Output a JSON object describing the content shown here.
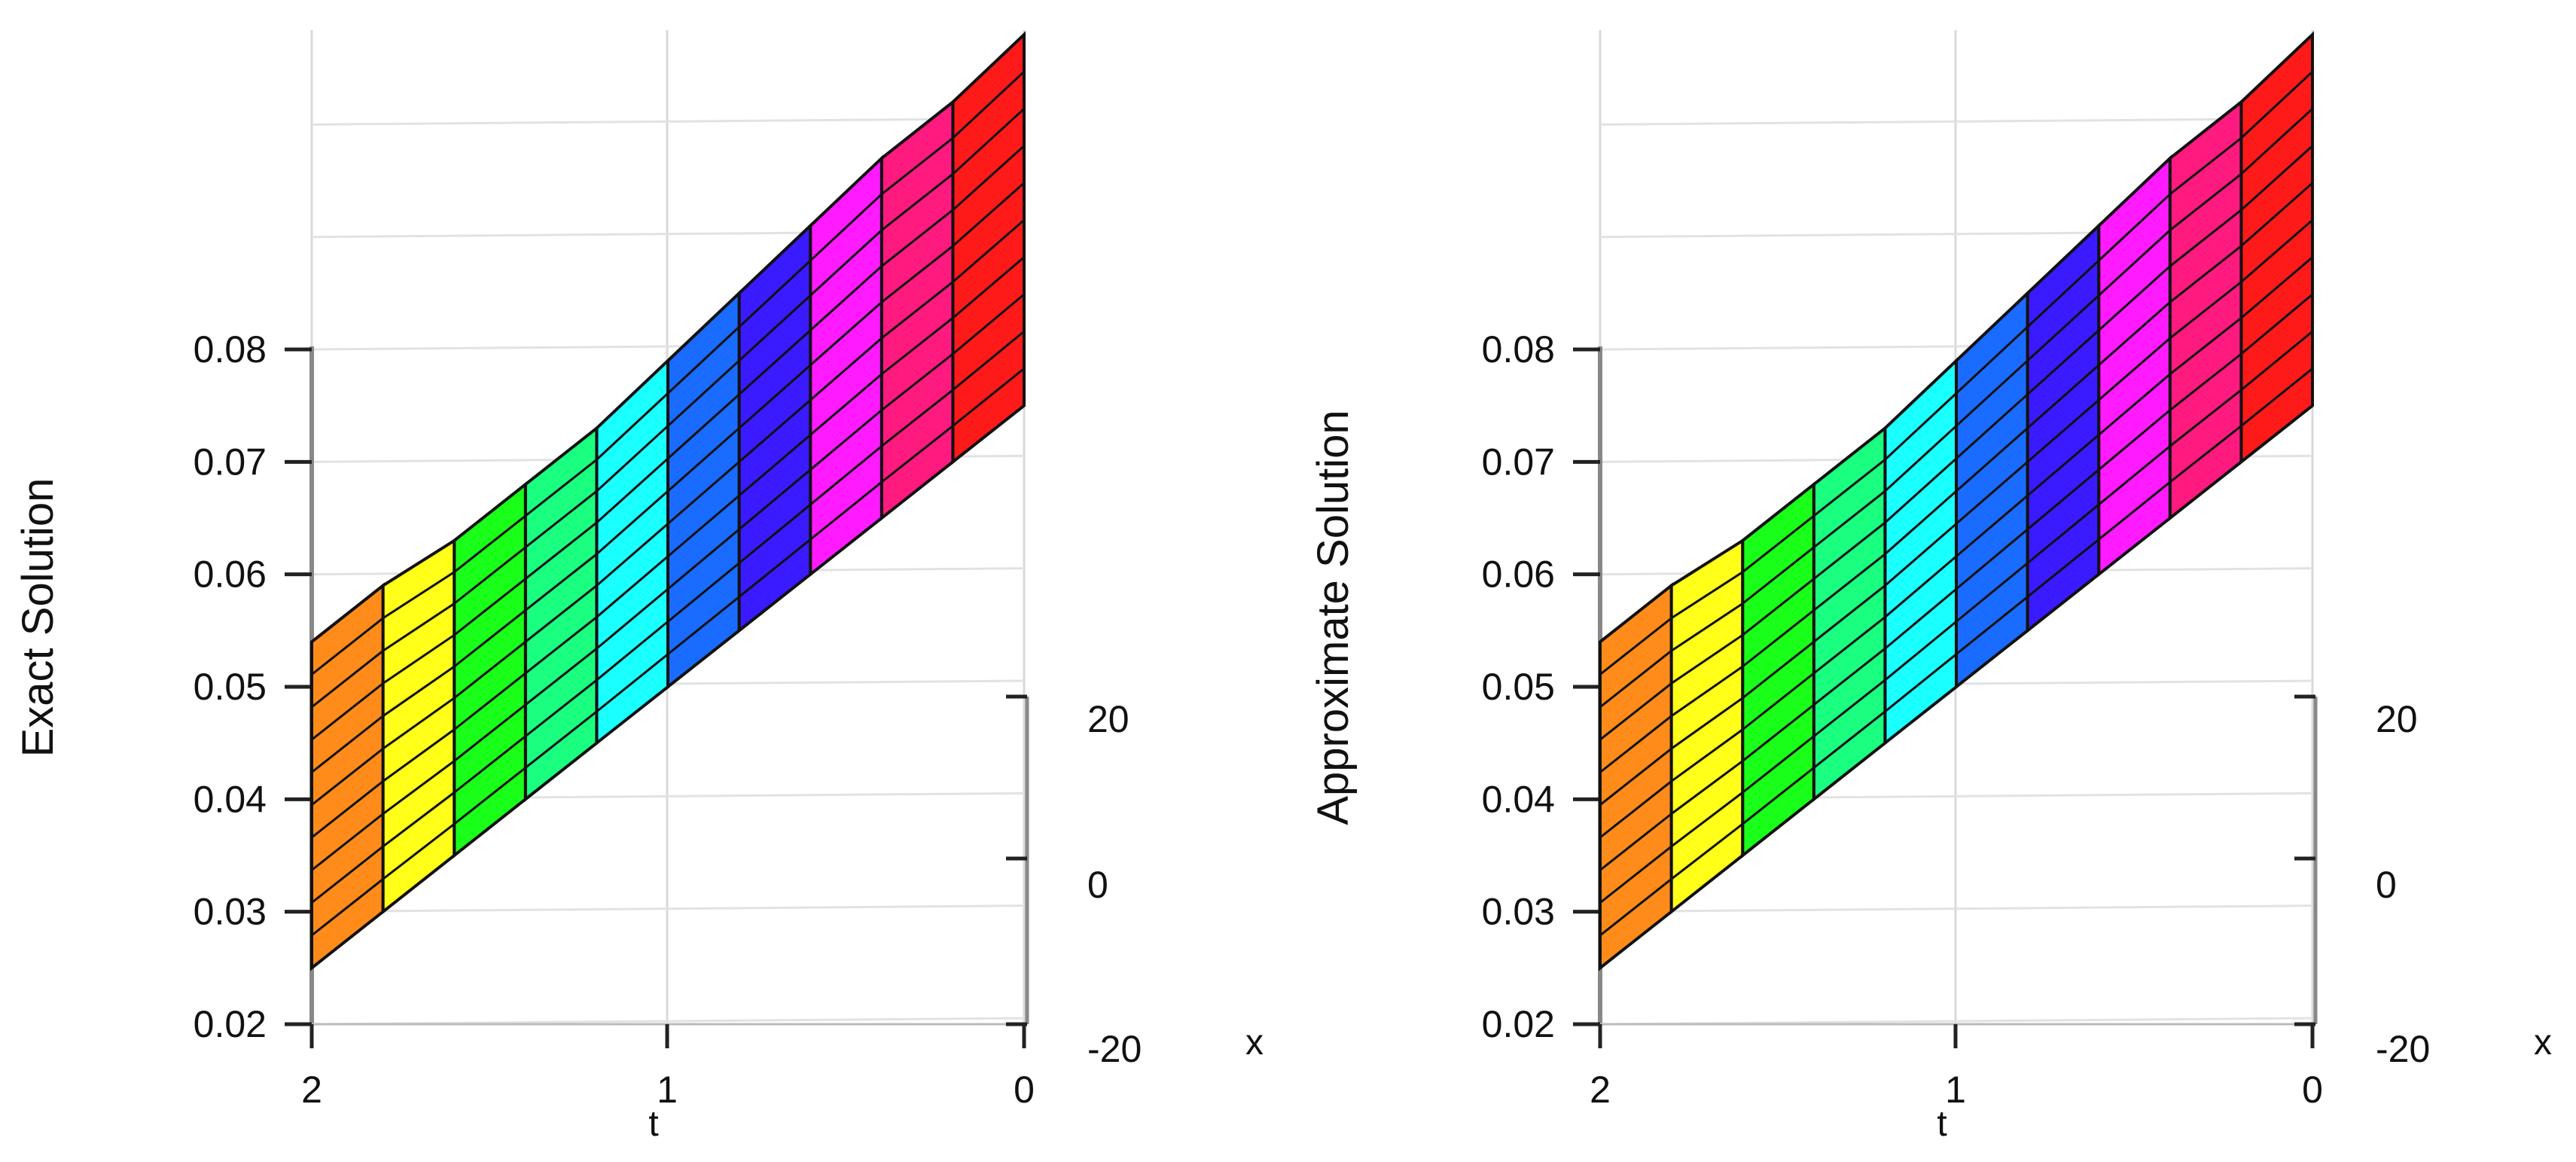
{
  "chart_data": [
    {
      "type": "surface",
      "title": "",
      "zlabel": "Exact Solution",
      "tlabel": "t",
      "xlabel": "x",
      "t_ticks": [
        "2",
        "1",
        "0"
      ],
      "x_ticks": [
        "20",
        "0",
        "-20"
      ],
      "z_ticks": [
        "0.08",
        "0.07",
        "0.06",
        "0.05",
        "0.04",
        "0.03",
        "0.02"
      ],
      "t_range": [
        0,
        2
      ],
      "x_range": [
        -20,
        20
      ],
      "z_range": [
        0.02,
        0.08
      ],
      "t_values": [
        0,
        0.2,
        0.4,
        0.6,
        0.8,
        1.0,
        1.2,
        1.4,
        1.6,
        1.8,
        2.0
      ],
      "z_at_x_min": [
        0.075,
        0.07,
        0.065,
        0.06,
        0.055,
        0.05,
        0.045,
        0.04,
        0.035,
        0.03,
        0.025
      ],
      "z_at_x_max": [
        0.108,
        0.102,
        0.097,
        0.091,
        0.085,
        0.079,
        0.073,
        0.068,
        0.063,
        0.059,
        0.054
      ],
      "x_levels": 10,
      "band_colors": [
        "#ff1a1a",
        "#ff1a80",
        "#ff1aff",
        "#3a1aff",
        "#1a6bff",
        "#1affff",
        "#1aff80",
        "#1aff1a",
        "#ffff1a",
        "#ff8c1a"
      ]
    },
    {
      "type": "surface",
      "title": "",
      "zlabel": "Approximate Solution",
      "tlabel": "t",
      "xlabel": "x",
      "t_ticks": [
        "2",
        "1",
        "0"
      ],
      "x_ticks": [
        "20",
        "0",
        "-20"
      ],
      "z_ticks": [
        "0.08",
        "0.07",
        "0.06",
        "0.05",
        "0.04",
        "0.03",
        "0.02"
      ],
      "t_range": [
        0,
        2
      ],
      "x_range": [
        -20,
        20
      ],
      "z_range": [
        0.02,
        0.08
      ],
      "t_values": [
        0,
        0.2,
        0.4,
        0.6,
        0.8,
        1.0,
        1.2,
        1.4,
        1.6,
        1.8,
        2.0
      ],
      "z_at_x_min": [
        0.075,
        0.07,
        0.065,
        0.06,
        0.055,
        0.05,
        0.045,
        0.04,
        0.035,
        0.03,
        0.025
      ],
      "z_at_x_max": [
        0.108,
        0.102,
        0.097,
        0.091,
        0.085,
        0.079,
        0.073,
        0.068,
        0.063,
        0.059,
        0.054
      ],
      "x_levels": 10,
      "band_colors": [
        "#ff1a1a",
        "#ff1a80",
        "#ff1aff",
        "#3a1aff",
        "#1a6bff",
        "#1affff",
        "#1aff80",
        "#1aff1a",
        "#ffff1a",
        "#ff8c1a"
      ]
    }
  ]
}
